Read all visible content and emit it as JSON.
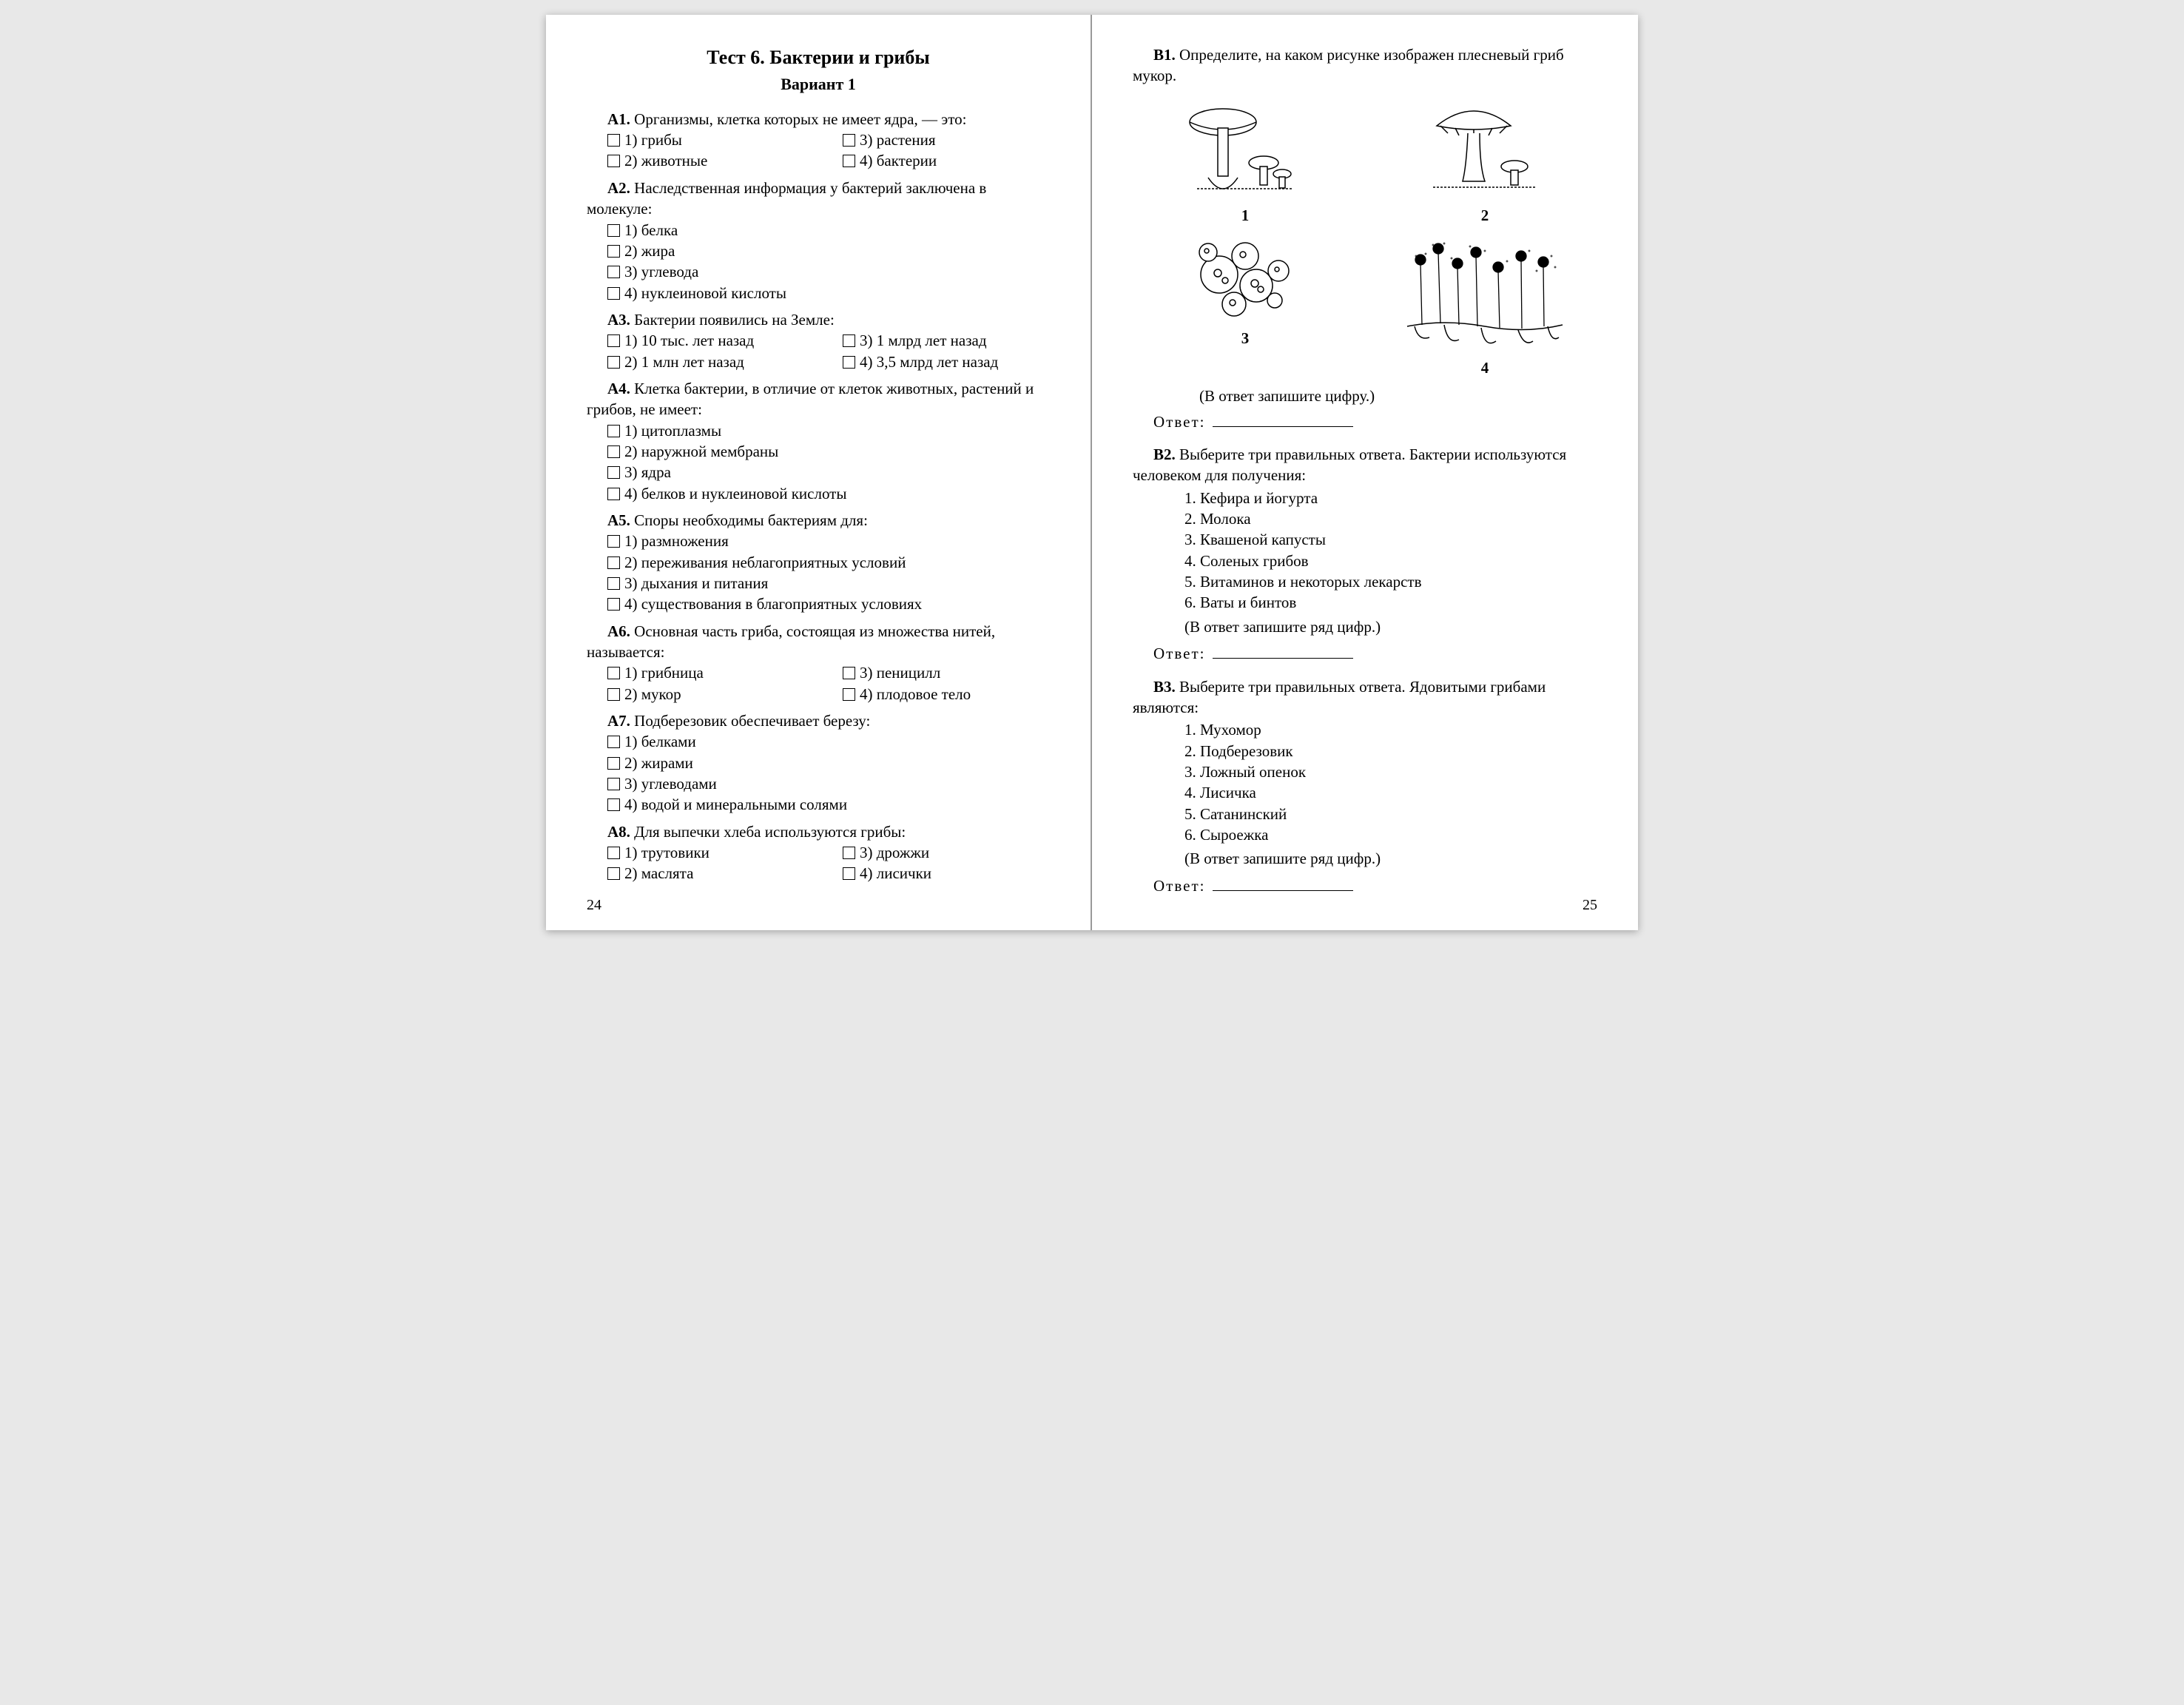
{
  "page_left_num": "24",
  "page_right_num": "25",
  "title": "Тест 6. Бактерии и грибы",
  "variant": "Вариант 1",
  "questions_a": [
    {
      "label": "А1.",
      "text": "Организмы, клетка которых не имеет ядра, — это:",
      "cols": 2,
      "opts": [
        "1) грибы",
        "3) растения",
        "2) животные",
        "4) бактерии"
      ]
    },
    {
      "label": "А2.",
      "text": "Наследственная информация у бактерий заключена в молекуле:",
      "cols": 1,
      "opts": [
        "1) белка",
        "2) жира",
        "3) углевода",
        "4) нуклеиновой кислоты"
      ]
    },
    {
      "label": "А3.",
      "text": "Бактерии появились на Земле:",
      "cols": 2,
      "opts": [
        "1) 10 тыс. лет назад",
        "3) 1 млрд лет назад",
        "2) 1 млн лет назад",
        "4) 3,5 млрд лет назад"
      ]
    },
    {
      "label": "А4.",
      "text": "Клетка бактерии, в отличие от клеток животных, растений и грибов, не имеет:",
      "cols": 1,
      "opts": [
        "1) цитоплазмы",
        "2) наружной мембраны",
        "3) ядра",
        "4) белков и нуклеиновой кислоты"
      ]
    },
    {
      "label": "А5.",
      "text": "Споры необходимы бактериям для:",
      "cols": 1,
      "opts": [
        "1) размножения",
        "2) переживания неблагоприятных условий",
        "3) дыхания и питания",
        "4) существования в благоприятных условиях"
      ]
    },
    {
      "label": "А6.",
      "text": "Основная часть гриба, состоящая из множества нитей, называется:",
      "cols": 2,
      "opts": [
        "1) грибница",
        "3) пеницилл",
        "2) мукор",
        "4) плодовое тело"
      ]
    },
    {
      "label": "А7.",
      "text": "Подберезовик обеспечивает березу:",
      "cols": 1,
      "opts": [
        "1) белками",
        "2) жирами",
        "3) углеводами",
        "4) водой и минеральными солями"
      ]
    },
    {
      "label": "А8.",
      "text": "Для выпечки хлеба используются грибы:",
      "cols": 2,
      "opts": [
        "1) трутовики",
        "3) дрожжи",
        "2) маслята",
        "4) лисички"
      ]
    }
  ],
  "b1": {
    "label": "В1.",
    "text": "Определите, на каком рисунке изображен плесневый гриб мукор.",
    "hint": "(В ответ запишите цифру.)",
    "answer_label": "Ответ:",
    "fig_labels": [
      "1",
      "2",
      "3",
      "4"
    ]
  },
  "b2": {
    "label": "В2.",
    "text": "Выберите три правильных ответа. Бактерии используются человеком для получения:",
    "items": [
      "1. Кефира и йогурта",
      "2. Молока",
      "3. Квашеной капусты",
      "4. Соленых грибов",
      "5. Витаминов и некоторых лекарств",
      "6. Ваты и бинтов"
    ],
    "hint": "(В ответ запишите ряд цифр.)",
    "answer_label": "Ответ:"
  },
  "b3": {
    "label": "В3.",
    "text": "Выберите три правильных ответа. Ядовитыми грибами являются:",
    "items": [
      "1. Мухомор",
      "2. Подберезовик",
      "3. Ложный опенок",
      "4. Лисичка",
      "5. Сатанинский",
      "6. Сыроежка"
    ],
    "hint": "(В ответ запишите ряд цифр.)",
    "answer_label": "Ответ:"
  },
  "svg": {
    "stroke": "#000000",
    "fill": "#ffffff",
    "stroke_width": 1.5
  }
}
